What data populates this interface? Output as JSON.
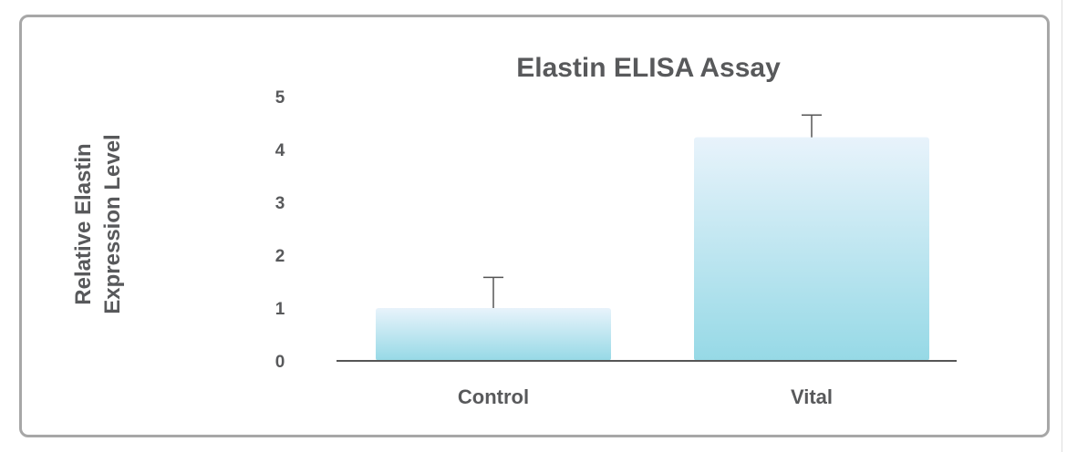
{
  "chart_data": {
    "type": "bar",
    "title": "Elastin ELISA Assay",
    "ylabel_lines": [
      "Relative Elastin",
      "Expression Level"
    ],
    "xlabel": "",
    "categories": [
      "Control",
      "Vital"
    ],
    "values": [
      1.0,
      4.23
    ],
    "error_upper": [
      0.58,
      0.42
    ],
    "ylim": [
      0,
      5
    ],
    "yticks": [
      "0",
      "1",
      "2",
      "3",
      "4",
      "5"
    ],
    "grid": false,
    "legend": "none",
    "colors": {
      "bar_top": "#e8f3fb",
      "bar_bottom": "#96d9e6",
      "text": "#58595b",
      "axis": "#555555",
      "frame": "#a7a7a7"
    }
  }
}
